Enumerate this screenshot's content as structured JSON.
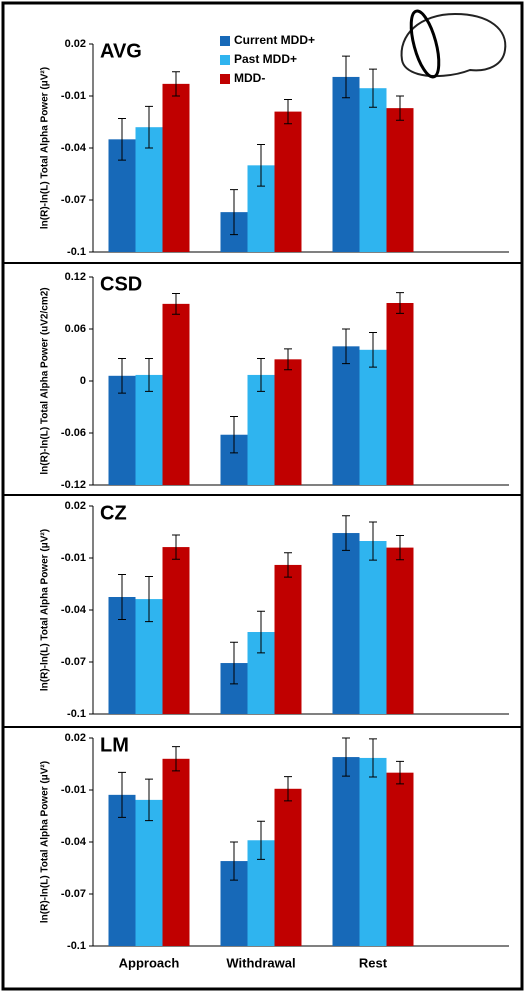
{
  "chart_data": [
    {
      "type": "bar",
      "title": "AVG",
      "y_label": "ln(R)-ln(L) Total Alpha Power (μV²)",
      "ylim": [
        -0.1,
        0.02
      ],
      "yticks": [
        0.02,
        -0.01,
        -0.04,
        -0.07,
        -0.1
      ],
      "legend": "top-center",
      "series": [
        {
          "name": "Current MDD+",
          "color": "#1769b8",
          "values": [
            -0.035,
            -0.077,
            0.001
          ],
          "errors": [
            0.012,
            0.013,
            0.012
          ]
        },
        {
          "name": "Past MDD+",
          "color": "#2fb4ef",
          "values": [
            -0.028,
            -0.05,
            -0.0055
          ],
          "errors": [
            0.012,
            0.012,
            0.011
          ]
        },
        {
          "name": "MDD-",
          "color": "#c00000",
          "values": [
            -0.003,
            -0.019,
            -0.017
          ],
          "errors": [
            0.007,
            0.007,
            0.007
          ]
        }
      ]
    },
    {
      "type": "bar",
      "title": "CSD",
      "y_label": "ln(R)-ln(L) Total Alpha Power (uV2/cm2)",
      "ylim": [
        -0.12,
        0.12
      ],
      "yticks": [
        0.12,
        0.06,
        0,
        -0.06,
        -0.12
      ],
      "series": [
        {
          "color": "#1769b8",
          "values": [
            0.006,
            -0.062,
            0.04
          ],
          "errors": [
            0.02,
            0.021,
            0.02
          ]
        },
        {
          "color": "#2fb4ef",
          "values": [
            0.007,
            0.007,
            0.036
          ],
          "errors": [
            0.019,
            0.019,
            0.02
          ]
        },
        {
          "color": "#c00000",
          "values": [
            0.089,
            0.025,
            0.09
          ],
          "errors": [
            0.012,
            0.012,
            0.012
          ]
        }
      ]
    },
    {
      "type": "bar",
      "title": "CZ",
      "y_label": "ln(R)-ln(L) Total Alpha Power (μV²)",
      "ylim": [
        -0.1,
        0.02
      ],
      "yticks": [
        0.02,
        -0.01,
        -0.04,
        -0.07,
        -0.1
      ],
      "series": [
        {
          "color": "#1769b8",
          "values": [
            -0.0325,
            -0.0706,
            0.0044
          ],
          "errors": [
            0.013,
            0.012,
            0.01
          ]
        },
        {
          "color": "#2fb4ef",
          "values": [
            -0.0337,
            -0.0527,
            -0.0002
          ],
          "errors": [
            0.013,
            0.012,
            0.011
          ]
        },
        {
          "color": "#c00000",
          "values": [
            -0.0037,
            -0.014,
            -0.004
          ],
          "errors": [
            0.007,
            0.007,
            0.007
          ]
        }
      ]
    },
    {
      "type": "bar",
      "title": "LM",
      "y_label": "ln(R)-ln(L) Total Alpha Power (μV²)",
      "ylim": [
        -0.1,
        0.02
      ],
      "yticks": [
        0.02,
        -0.01,
        -0.04,
        -0.07,
        -0.1
      ],
      "categories": [
        "Approach",
        "Withdrawal",
        "Rest"
      ],
      "series": [
        {
          "color": "#1769b8",
          "values": [
            -0.0128,
            -0.051,
            0.009
          ],
          "errors": [
            0.013,
            0.011,
            0.011
          ]
        },
        {
          "color": "#2fb4ef",
          "values": [
            -0.0157,
            -0.039,
            0.0085
          ],
          "errors": [
            0.012,
            0.011,
            0.011
          ]
        },
        {
          "color": "#c00000",
          "values": [
            0.008,
            -0.0093,
            0.0
          ],
          "errors": [
            0.007,
            0.007,
            0.0065
          ]
        }
      ]
    }
  ]
}
